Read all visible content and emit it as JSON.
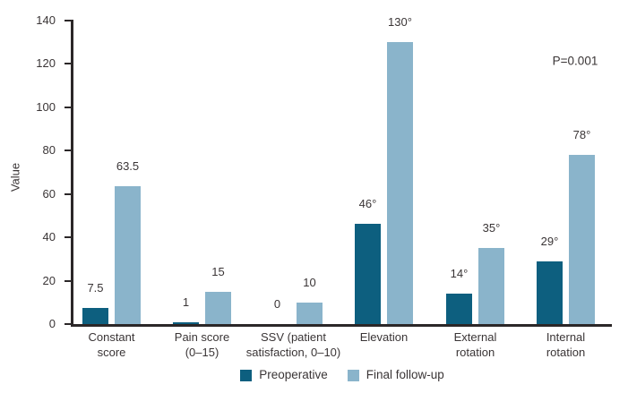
{
  "chart_data": {
    "type": "bar",
    "title": "",
    "xlabel": "",
    "ylabel": "Value",
    "ylim": [
      0,
      140
    ],
    "yticks": [
      0,
      20,
      40,
      60,
      80,
      100,
      120,
      140
    ],
    "grid": false,
    "legend_position": "bottom",
    "annotation": "P=0.001",
    "categories": [
      "Constant score",
      "Pain score (0–15)",
      "SSV (patient satisfaction, 0–10)",
      "Elevation",
      "External rotation",
      "Internal rotation"
    ],
    "category_label_lines": [
      [
        "Constant",
        "score"
      ],
      [
        "Pain score",
        "(0–15)"
      ],
      [
        "SSV (patient",
        "satisfaction, 0–10)"
      ],
      [
        "Elevation"
      ],
      [
        "External",
        "rotation"
      ],
      [
        "Internal",
        "rotation"
      ]
    ],
    "series": [
      {
        "name": "Preoperative",
        "color": "#0d5f7f",
        "values": [
          7.5,
          1,
          0,
          46,
          14,
          29
        ],
        "value_labels": [
          "7.5",
          "1",
          "0",
          "46°",
          "14°",
          "29°"
        ]
      },
      {
        "name": "Final follow-up",
        "color": "#8ab4cb",
        "values": [
          63.5,
          15,
          10,
          130,
          35,
          78
        ],
        "value_labels": [
          "63.5",
          "15",
          "10",
          "130°",
          "35°",
          "78°"
        ]
      }
    ]
  },
  "colors": {
    "axis": "#2b2728",
    "text": "#3a3536",
    "background": "#ffffff"
  }
}
